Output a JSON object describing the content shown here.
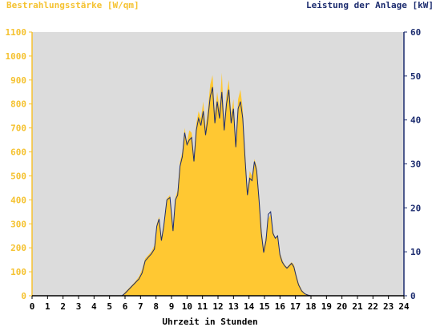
{
  "colors": {
    "left_axis": "#f5c230",
    "right_axis": "#1b2b6e",
    "plot_bg": "#dcdcdc",
    "fill": "#ffc832",
    "line": "#1b2b6e",
    "text": "#000000"
  },
  "chart_data": {
    "type": "area",
    "title": "",
    "ylabel_left": "Bestrahlungsstärke [W/qm]",
    "ylabel_right": "Leistung der Anlage [kW]",
    "xlabel": "Uhrzeit in Stunden",
    "xlim": [
      0,
      24
    ],
    "ylim_left": [
      0,
      1100
    ],
    "ylim_right": [
      0,
      60
    ],
    "x_ticks": [
      "0",
      "1",
      "2",
      "3",
      "4",
      "5",
      "6",
      "7",
      "8",
      "9",
      "10",
      "11",
      "12",
      "13",
      "14",
      "15",
      "16",
      "17",
      "18",
      "19",
      "20",
      "21",
      "22",
      "23",
      "24"
    ],
    "y_left_ticks": [
      "0",
      "100",
      "200",
      "300",
      "400",
      "500",
      "600",
      "700",
      "800",
      "900",
      "1000",
      "1100"
    ],
    "y_right_ticks": [
      "0",
      "10",
      "20",
      "30",
      "40",
      "50",
      "60"
    ],
    "grid": false,
    "series": [
      {
        "name": "Bestrahlungsstärke",
        "axis": "left",
        "x": [
          0,
          5.8,
          6.0,
          6.3,
          6.6,
          6.9,
          7.1,
          7.3,
          7.5,
          7.7,
          7.9,
          8.05,
          8.2,
          8.35,
          8.5,
          8.7,
          8.9,
          9.1,
          9.25,
          9.4,
          9.55,
          9.7,
          9.85,
          10.0,
          10.15,
          10.3,
          10.45,
          10.6,
          10.75,
          10.9,
          11.05,
          11.2,
          11.35,
          11.5,
          11.65,
          11.8,
          11.95,
          12.1,
          12.25,
          12.4,
          12.55,
          12.7,
          12.85,
          13.0,
          13.15,
          13.3,
          13.45,
          13.6,
          13.75,
          13.9,
          14.05,
          14.2,
          14.35,
          14.5,
          14.65,
          14.8,
          14.95,
          15.1,
          15.25,
          15.4,
          15.55,
          15.7,
          15.85,
          16.0,
          16.15,
          16.3,
          16.45,
          16.6,
          16.75,
          16.9,
          17.05,
          17.2,
          17.4,
          17.6,
          17.8,
          18.0,
          18.2,
          18.4,
          18.6,
          18.8,
          19.0,
          19.2,
          24
        ],
        "values": [
          0,
          0,
          15,
          35,
          55,
          80,
          110,
          155,
          170,
          185,
          210,
          300,
          330,
          240,
          300,
          405,
          420,
          280,
          410,
          440,
          560,
          600,
          700,
          640,
          690,
          680,
          580,
          720,
          770,
          740,
          810,
          700,
          780,
          880,
          920,
          760,
          850,
          780,
          930,
          720,
          840,
          900,
          760,
          820,
          650,
          820,
          860,
          780,
          600,
          440,
          520,
          500,
          570,
          540,
          420,
          280,
          200,
          250,
          320,
          340,
          270,
          240,
          250,
          180,
          150,
          130,
          120,
          130,
          140,
          130,
          90,
          55,
          25,
          10,
          5,
          0,
          0,
          0,
          0,
          0,
          0,
          0,
          0
        ],
        "line_values": [
          0,
          0,
          10,
          30,
          50,
          70,
          95,
          145,
          160,
          175,
          195,
          290,
          320,
          230,
          290,
          400,
          410,
          270,
          400,
          420,
          540,
          580,
          680,
          630,
          650,
          660,
          560,
          690,
          740,
          710,
          770,
          670,
          740,
          830,
          870,
          720,
          810,
          740,
          850,
          690,
          800,
          860,
          720,
          780,
          620,
          780,
          810,
          740,
          570,
          420,
          490,
          480,
          560,
          520,
          400,
          260,
          180,
          230,
          340,
          350,
          260,
          240,
          250,
          170,
          140,
          125,
          115,
          125,
          135,
          120,
          80,
          45,
          20,
          8,
          3,
          0,
          0,
          0,
          0,
          0,
          0,
          0,
          0
        ]
      }
    ]
  }
}
